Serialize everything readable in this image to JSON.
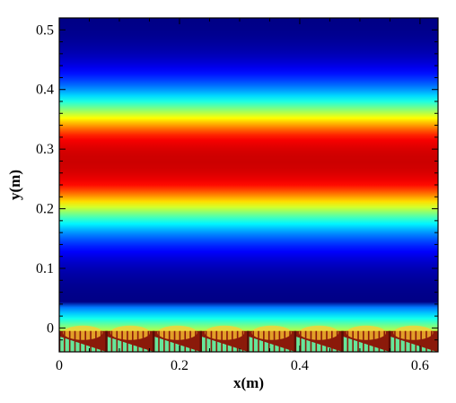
{
  "chart_data": {
    "type": "heatmap",
    "xlabel": "x(m)",
    "ylabel": "y(m)",
    "xlim": [
      0,
      0.63
    ],
    "ylim": [
      -0.04,
      0.52
    ],
    "x_ticks": [
      0,
      0.2,
      0.4,
      0.6
    ],
    "x_tick_labels": [
      "0",
      "0.2",
      "0.4",
      "0.6"
    ],
    "y_ticks": [
      0,
      0.1,
      0.2,
      0.3,
      0.4,
      0.5
    ],
    "y_tick_labels": [
      "0",
      "0.1",
      "0.2",
      "0.3",
      "0.4",
      "0.5"
    ],
    "colormap": [
      "#00007f",
      "#0000ff",
      "#007fff",
      "#00ffff",
      "#7fff7f",
      "#ffff00",
      "#ff7f00",
      "#ff0000",
      "#cc0000"
    ],
    "band": {
      "description_values": "Horizontal field bands, peak centered near y=0.28, decaying toward y≈0.05 and y≈0.47",
      "peak_y": 0.28,
      "half_width": 0.1
    },
    "bottom_structure": {
      "y_bottom": -0.04,
      "y_top": -0.005,
      "period_x": 0.0785,
      "count": 8,
      "fill_colors": {
        "bars": "#8b1a0a",
        "wedge": "#66e69a",
        "glow": "#ffcc33"
      }
    }
  }
}
